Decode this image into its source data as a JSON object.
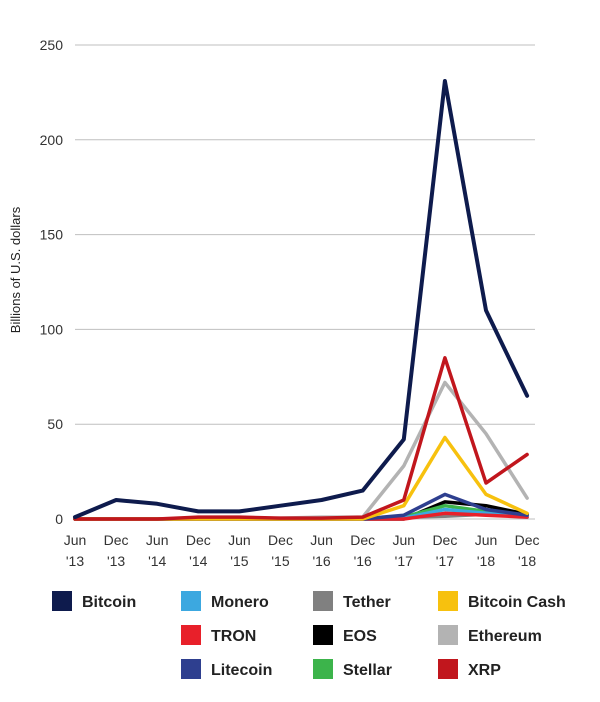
{
  "chart_data": {
    "type": "line",
    "title": "",
    "xlabel": "",
    "ylabel": "Billions of U.S. dollars",
    "ylim": [
      0,
      250
    ],
    "yticks": [
      0,
      50,
      100,
      150,
      200,
      250
    ],
    "grid": true,
    "legend_position": "bottom",
    "categories": [
      {
        "top": "Jun",
        "bottom": "'13"
      },
      {
        "top": "Dec",
        "bottom": "'13"
      },
      {
        "top": "Jun",
        "bottom": "'14"
      },
      {
        "top": "Dec",
        "bottom": "'14"
      },
      {
        "top": "Jun",
        "bottom": "'15"
      },
      {
        "top": "Dec",
        "bottom": "'15"
      },
      {
        "top": "Jun",
        "bottom": "'16"
      },
      {
        "top": "Dec",
        "bottom": "'16"
      },
      {
        "top": "Jun",
        "bottom": "'17"
      },
      {
        "top": "Dec",
        "bottom": "'17"
      },
      {
        "top": "Jun",
        "bottom": "'18"
      },
      {
        "top": "Dec",
        "bottom": "'18"
      }
    ],
    "series": [
      {
        "name": "Ethereum",
        "color": "#b3b3b3",
        "values": [
          0,
          0,
          0,
          0,
          0,
          0.5,
          1,
          1,
          28,
          72,
          45,
          11
        ]
      },
      {
        "name": "Tether",
        "color": "#808080",
        "values": [
          0,
          0,
          0,
          0,
          0,
          0,
          0,
          0.2,
          1,
          1.5,
          2.5,
          2
        ]
      },
      {
        "name": "EOS",
        "color": "#000000",
        "values": [
          0,
          0,
          0,
          0,
          0,
          0,
          0,
          0,
          0,
          9,
          7,
          2.5
        ]
      },
      {
        "name": "Stellar",
        "color": "#3cb44b",
        "values": [
          0,
          0,
          0,
          0,
          0,
          0,
          0,
          0,
          1,
          7,
          4,
          2
        ]
      },
      {
        "name": "Monero",
        "color": "#3ca8e0",
        "values": [
          0,
          0,
          0,
          0,
          0,
          0,
          0,
          0,
          0.5,
          5,
          3,
          1
        ]
      },
      {
        "name": "TRON",
        "color": "#e8202a",
        "values": [
          0,
          0,
          0,
          0,
          0,
          0,
          0,
          0,
          0,
          3,
          2,
          1
        ]
      },
      {
        "name": "Litecoin",
        "color": "#2e3f8f",
        "values": [
          0,
          0,
          0,
          0,
          0,
          0,
          0,
          0,
          2,
          13,
          5,
          2
        ]
      },
      {
        "name": "Bitcoin Cash",
        "color": "#f7c10e",
        "values": [
          0,
          0,
          0,
          0,
          0,
          0,
          0,
          0,
          7,
          43,
          13,
          3
        ]
      },
      {
        "name": "XRP",
        "color": "#c1161d",
        "values": [
          0,
          0,
          0,
          1,
          1,
          0.5,
          0.5,
          1,
          10,
          85,
          19,
          34
        ]
      },
      {
        "name": "Bitcoin",
        "color": "#0e1b4d",
        "values": [
          1,
          10,
          8,
          4,
          4,
          7,
          10,
          15,
          42,
          231,
          110,
          65
        ]
      }
    ]
  },
  "legend": [
    {
      "name": "Bitcoin",
      "color": "#0e1b4d"
    },
    {
      "name": "Monero",
      "color": "#3ca8e0"
    },
    {
      "name": "Tether",
      "color": "#808080"
    },
    {
      "name": "Bitcoin Cash",
      "color": "#f7c10e"
    },
    {
      "name": "TRON",
      "color": "#e8202a"
    },
    {
      "name": "EOS",
      "color": "#000000"
    },
    {
      "name": "Ethereum",
      "color": "#b3b3b3"
    },
    {
      "name": "Litecoin",
      "color": "#2e3f8f"
    },
    {
      "name": "Stellar",
      "color": "#3cb44b"
    },
    {
      "name": "XRP",
      "color": "#c1161d"
    }
  ]
}
